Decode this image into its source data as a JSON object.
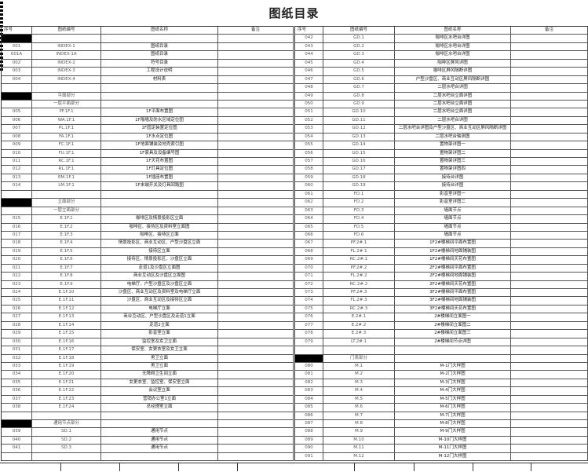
{
  "title": "图纸目录",
  "headers": [
    "序号",
    "图纸编号",
    "图纸名称",
    "备注"
  ],
  "left_rows": [
    [
      "",
      "",
      "",
      "black"
    ],
    [
      "001",
      "INDEX-1",
      "图纸目录"
    ],
    [
      "001A",
      "INDEX-1A",
      "图纸目录"
    ],
    [
      "002",
      "INDEX-2",
      "符号目录"
    ],
    [
      "003",
      "INDEX-3",
      "工程设计说明"
    ],
    [
      "004",
      "INDEX-4",
      "材料表"
    ],
    [
      "",
      "",
      ""
    ],
    [
      "",
      "平面部分",
      "",
      "black"
    ],
    [
      "",
      "一层平面部分",
      ""
    ],
    [
      "005",
      "PF.1F.1",
      "1F平面布置图"
    ],
    [
      "006",
      "WA.1F.1",
      "1F隔墙及防水区域定位图"
    ],
    [
      "007",
      "PL.1F.1",
      "1F固定装置定位图"
    ],
    [
      "008",
      "FA.1F.1",
      "1F水点定位图"
    ],
    [
      "009",
      "FC.1F.1",
      "1F地面铺装及地壳索引图"
    ],
    [
      "010",
      "FU.1F.1",
      "1F家具及设备编号图"
    ],
    [
      "011",
      "RC.1F.1",
      "1F天花布置图"
    ],
    [
      "012",
      "RL.1F.1",
      "1F灯具定位图"
    ],
    [
      "013",
      "EM.1F.1",
      "1F插座布置图"
    ],
    [
      "014",
      "LM.1F.1",
      "1F末端开关及灯具回路图"
    ],
    [
      "",
      "",
      ""
    ],
    [
      "",
      "立面部分",
      "",
      "black"
    ],
    [
      "",
      "一层立面部分",
      ""
    ],
    [
      "015",
      "E.1F.1",
      "咖啡区及情景投影区立面"
    ],
    [
      "016",
      "E.1F.2",
      "咖啡区、接待区及资料室立面图"
    ],
    [
      "017",
      "E.1F.3",
      "咖啡区、接待区立面"
    ],
    [
      "018",
      "E.1F.4",
      "情景投影区、商业互动区、户型沙盘区立面"
    ],
    [
      "019",
      "E.1F.5",
      "接待区立面"
    ],
    [
      "020",
      "E.1F.6",
      "接待区、情景投影区、沙盘区立面"
    ],
    [
      "021",
      "E.1F.7",
      "走道1及沙盘区立面图"
    ],
    [
      "022",
      "E.1F.8",
      "商业互动区及沙盘区立面图"
    ],
    [
      "023",
      "E.1F.9",
      "电梯厅、户型沙盘区及沙盘区立面"
    ],
    [
      "024",
      "E.1F.10",
      "沙盘区、商业互动区及资料室及电梯厅立面"
    ],
    [
      "025",
      "E.1F.11",
      "沙盘区、商业互动区及接待区立面"
    ],
    [
      "026",
      "E.1F.12",
      "电梯厅立面"
    ],
    [
      "027",
      "E.1F.13",
      "商业互动区、户型沙盘区及走道1立面"
    ],
    [
      "028",
      "E.1F.14",
      "走道2立面"
    ],
    [
      "029",
      "E.1F.15",
      "影音室立面"
    ],
    [
      "030",
      "E.1F.16",
      "监控室及女卫立面"
    ],
    [
      "031",
      "E.1F.17",
      "保安室、女更衣室及女卫立面"
    ],
    [
      "032",
      "E.1F.18",
      "男卫立面"
    ],
    [
      "033",
      "E.1F.19",
      "男卫立面"
    ],
    [
      "034",
      "E.1F.20",
      "无障碍卫生间立面"
    ],
    [
      "035",
      "E.1F.21",
      "女更衣室、监控室、保安室立面"
    ],
    [
      "036",
      "E.1F.22",
      "会议室立面"
    ],
    [
      "037",
      "E.1F.23",
      "营销办公室1立面"
    ],
    [
      "038",
      "E.1F.24",
      "总经理室立面"
    ],
    [
      "",
      "",
      ""
    ],
    [
      "",
      "通用节点部分",
      "",
      "black"
    ],
    [
      "039",
      "SD.1",
      "通用节点"
    ],
    [
      "040",
      "SD.2",
      "通用节点"
    ],
    [
      "041",
      "SD.3",
      "通用节点"
    ],
    [
      "",
      "",
      ""
    ]
  ],
  "right_rows": [
    [
      "042",
      "GD.1",
      "咖啡区水吧台详图"
    ],
    [
      "043",
      "GD.2",
      "咖啡区水吧台详图"
    ],
    [
      "044",
      "GD.3",
      "咖啡区水吧台详图"
    ],
    [
      "045",
      "GD.4",
      "咖啡区屏风详图"
    ],
    [
      "046",
      "GD.5",
      "咖啡区屏风隔断详图"
    ],
    [
      "047",
      "GD.6",
      "户型沙盘区、商业互动区屏风隔断详图"
    ],
    [
      "048",
      "GD.7",
      "二层水吧台详图"
    ],
    [
      "049",
      "GD.8",
      "二层水吧台立面详图"
    ],
    [
      "050",
      "GD.9",
      "二层水吧台立面详图"
    ],
    [
      "051",
      "GD.10",
      "二层水吧台立面详图"
    ],
    [
      "052",
      "GD.11",
      "二层水吧台详图"
    ],
    [
      "053",
      "GD.12",
      "二层水吧台详图及户型沙盘区、商业互动区屏风隔断详图"
    ],
    [
      "054",
      "GD.13",
      "二层水吧台轴测图"
    ],
    [
      "055",
      "GD.14",
      "置物架详图一"
    ],
    [
      "056",
      "GD.15",
      "置物架详图二"
    ],
    [
      "057",
      "GD.16",
      "置物架详图三"
    ],
    [
      "058",
      "GD.17",
      "置物架详图四"
    ],
    [
      "059",
      "GD.18",
      "接待台详图"
    ],
    [
      "060",
      "GD.19",
      "接待台详图"
    ],
    [
      "061",
      "FD.1",
      "影音室详图一"
    ],
    [
      "062",
      "FD.2",
      "影音室详图二"
    ],
    [
      "063",
      "FD.3",
      "墙面节点"
    ],
    [
      "064",
      "FD.4",
      "墙面节点"
    ],
    [
      "065",
      "FD.5",
      "墙面节点"
    ],
    [
      "066",
      "FD.6",
      "墙面节点"
    ],
    [
      "067",
      "PF.2#.1",
      "1F2#楼梯间平面布置图"
    ],
    [
      "068",
      "FL.2#.1",
      "1F2#楼梯间地面铺装图"
    ],
    [
      "069",
      "RC.2#.1",
      "1F2#楼梯间天花布置图"
    ],
    [
      "070",
      "PF.2#.2",
      "2F2#楼梯间平面布置图"
    ],
    [
      "071",
      "FL.2#.2",
      "2F2#楼梯间地面铺装图"
    ],
    [
      "072",
      "RC.2#.2",
      "2F2#楼梯间天花布置图"
    ],
    [
      "073",
      "PF.2#.3",
      "3F2#楼梯间平面布置图"
    ],
    [
      "074",
      "FL.2#.3",
      "3F2#楼梯间地面铺装图"
    ],
    [
      "075",
      "RC.2#.3",
      "3F2#楼梯间天花布置图"
    ],
    [
      "076",
      "E.2#.1",
      "2#楼梯间立面图一"
    ],
    [
      "077",
      "E.2#.2",
      "2#楼梯间立面图二"
    ],
    [
      "078",
      "E.2#.3",
      "2#楼梯间立面图三"
    ],
    [
      "079",
      "LT.2#.1",
      "2#楼梯间节点详图"
    ],
    [
      "",
      "",
      ""
    ],
    [
      "",
      "门表部分",
      "",
      "black"
    ],
    [
      "080",
      "M.1",
      "M-1门大样图"
    ],
    [
      "081",
      "M.2",
      "M-2门大样图"
    ],
    [
      "082",
      "M.3",
      "M-3门大样图"
    ],
    [
      "083",
      "M.4",
      "M-4门大样图"
    ],
    [
      "084",
      "M.5",
      "M-5门大样图"
    ],
    [
      "085",
      "M.6",
      "M-6门大样图"
    ],
    [
      "086",
      "M.7",
      "M-7门大样图"
    ],
    [
      "087",
      "M.8",
      "M-8门大样图"
    ],
    [
      "088",
      "M.9",
      "M-9门大样图"
    ],
    [
      "089",
      "M.10",
      "M-10门大样图"
    ],
    [
      "090",
      "M.11",
      "M-11门大样图"
    ],
    [
      "091",
      "M.12",
      "M-12门大样图"
    ]
  ]
}
